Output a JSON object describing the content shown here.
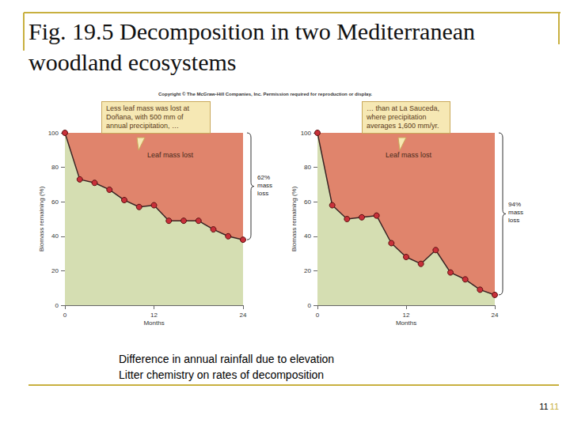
{
  "title": "Fig. 19.5 Decomposition in two Mediterranean woodland ecosystems",
  "copyright": "Copyright © The McGraw-Hill Companies, Inc. Permission required for reproduction or display.",
  "chart_data": [
    {
      "type": "line",
      "x": [
        0,
        2,
        4,
        6,
        8,
        10,
        12,
        14,
        16,
        18,
        20,
        22,
        24
      ],
      "values": [
        100,
        73,
        71,
        67,
        61,
        57,
        58,
        49,
        49,
        49,
        44,
        40,
        38
      ],
      "color": "#c8303a",
      "xlim": [
        0,
        24
      ],
      "xticks": [
        0,
        12,
        24
      ],
      "ylim": [
        0,
        100
      ],
      "yticks": [
        0,
        20,
        40,
        60,
        80,
        100
      ],
      "grid": false,
      "y_label": "Biomass remaining (%)",
      "x_label": "Months",
      "callout": "Less leaf mass was lost at Doñana, with 500 mm of annual precipitation, …",
      "area_label": "Leaf mass lost",
      "mass_loss_label": "62% mass loss"
    },
    {
      "type": "line",
      "x": [
        0,
        2,
        4,
        6,
        8,
        10,
        12,
        14,
        16,
        18,
        20,
        22,
        24
      ],
      "values": [
        100,
        58,
        50,
        51,
        52,
        36,
        28,
        24,
        32,
        19,
        15,
        9,
        6
      ],
      "color": "#c8303a",
      "xlim": [
        0,
        24
      ],
      "xticks": [
        0,
        12,
        24
      ],
      "ylim": [
        0,
        100
      ],
      "yticks": [
        0,
        20,
        40,
        60,
        80,
        100
      ],
      "grid": false,
      "y_label": "Biomass remaining (%)",
      "x_label": "Months",
      "callout": "… than at La Sauceda, where precipitation averages 1,600 mm/yr.",
      "area_label": "Leaf mass lost",
      "mass_loss_label": "94% mass loss"
    }
  ],
  "notes": [
    "Difference in annual rainfall due to elevation",
    "Litter chemistry on rates of decomposition"
  ],
  "page_number": [
    "11",
    "11"
  ]
}
